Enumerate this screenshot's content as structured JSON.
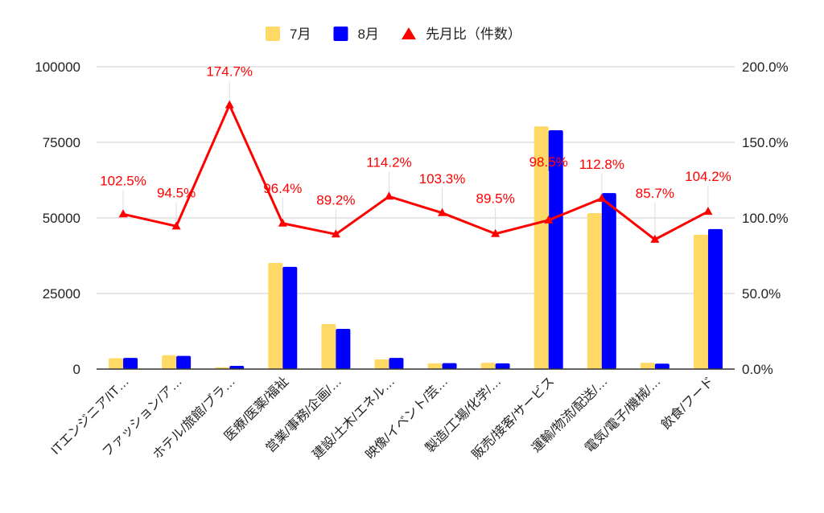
{
  "chart_data": {
    "type": "bar",
    "title": "",
    "categories": [
      "ITエンジニア/IT…",
      "ファッション/ア…",
      "ホテル/旅館/ブラ…",
      "医療/医薬/福祉",
      "営業/事務/企画/…",
      "建設/土木/エネル…",
      "映像/イベント/芸…",
      "製造/工場/化学/…",
      "販売/接客/サービス",
      "運輸/物流/配送/…",
      "電気/電子/機械/…",
      "飲食/フード"
    ],
    "series": [
      {
        "name": "7月",
        "type": "bar",
        "axis": "left",
        "color": "#FFD966",
        "values": [
          3600,
          4600,
          600,
          35100,
          14900,
          3200,
          1900,
          2100,
          80300,
          51600,
          2100,
          44400
        ]
      },
      {
        "name": "8月",
        "type": "bar",
        "axis": "left",
        "color": "#0000FF",
        "values": [
          3700,
          4350,
          1050,
          33800,
          13300,
          3700,
          1950,
          1900,
          79000,
          58200,
          1800,
          46300
        ]
      },
      {
        "name": "先月比（件数）",
        "type": "line",
        "axis": "right",
        "color": "#FF0000",
        "values": [
          102.5,
          94.5,
          174.7,
          96.4,
          89.2,
          114.2,
          103.3,
          89.5,
          98.5,
          112.8,
          85.7,
          104.2
        ],
        "labels": [
          "102.5%",
          "94.5%",
          "174.7%",
          "96.4%",
          "89.2%",
          "114.2%",
          "103.3%",
          "89.5%",
          "98.5%",
          "112.8%",
          "85.7%",
          "104.2%"
        ]
      }
    ],
    "y_left": {
      "range": [
        0,
        100000
      ],
      "ticks": [
        "0",
        "25000",
        "50000",
        "75000",
        "100000"
      ]
    },
    "y_right": {
      "range": [
        0,
        200
      ],
      "ticks": [
        "0.0%",
        "50.0%",
        "100.0%",
        "150.0%",
        "200.0%"
      ]
    },
    "xlabel": "",
    "ylabel": "",
    "grid": true,
    "legend_position": "top-center"
  }
}
